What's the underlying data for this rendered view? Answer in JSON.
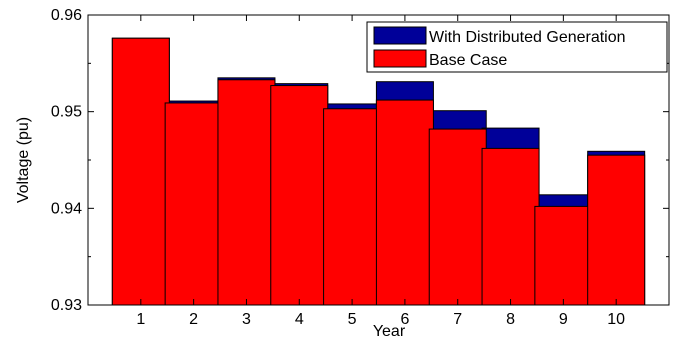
{
  "chart_data": {
    "type": "bar",
    "title": "",
    "xlabel": "Year",
    "ylabel": "Voltage (pu)",
    "categories": [
      "1",
      "2",
      "3",
      "4",
      "5",
      "6",
      "7",
      "8",
      "9",
      "10"
    ],
    "ylim": [
      0.93,
      0.96
    ],
    "yticks": [
      "0.93",
      "0.94",
      "0.95",
      "0.96"
    ],
    "yticks_values": [
      0.93,
      0.94,
      0.95,
      0.96
    ],
    "overlay": true,
    "legend_position": "top-right",
    "series": [
      {
        "name": "With Distributed Generation",
        "color": "#000099",
        "values": [
          0.9576,
          0.9511,
          0.9535,
          0.9529,
          0.9508,
          0.9531,
          0.9501,
          0.9483,
          0.9414,
          0.9459
        ]
      },
      {
        "name": "Base Case",
        "color": "#ff0000",
        "values": [
          0.9576,
          0.9509,
          0.9533,
          0.9527,
          0.9503,
          0.9512,
          0.9482,
          0.9462,
          0.9402,
          0.9455
        ]
      }
    ]
  }
}
